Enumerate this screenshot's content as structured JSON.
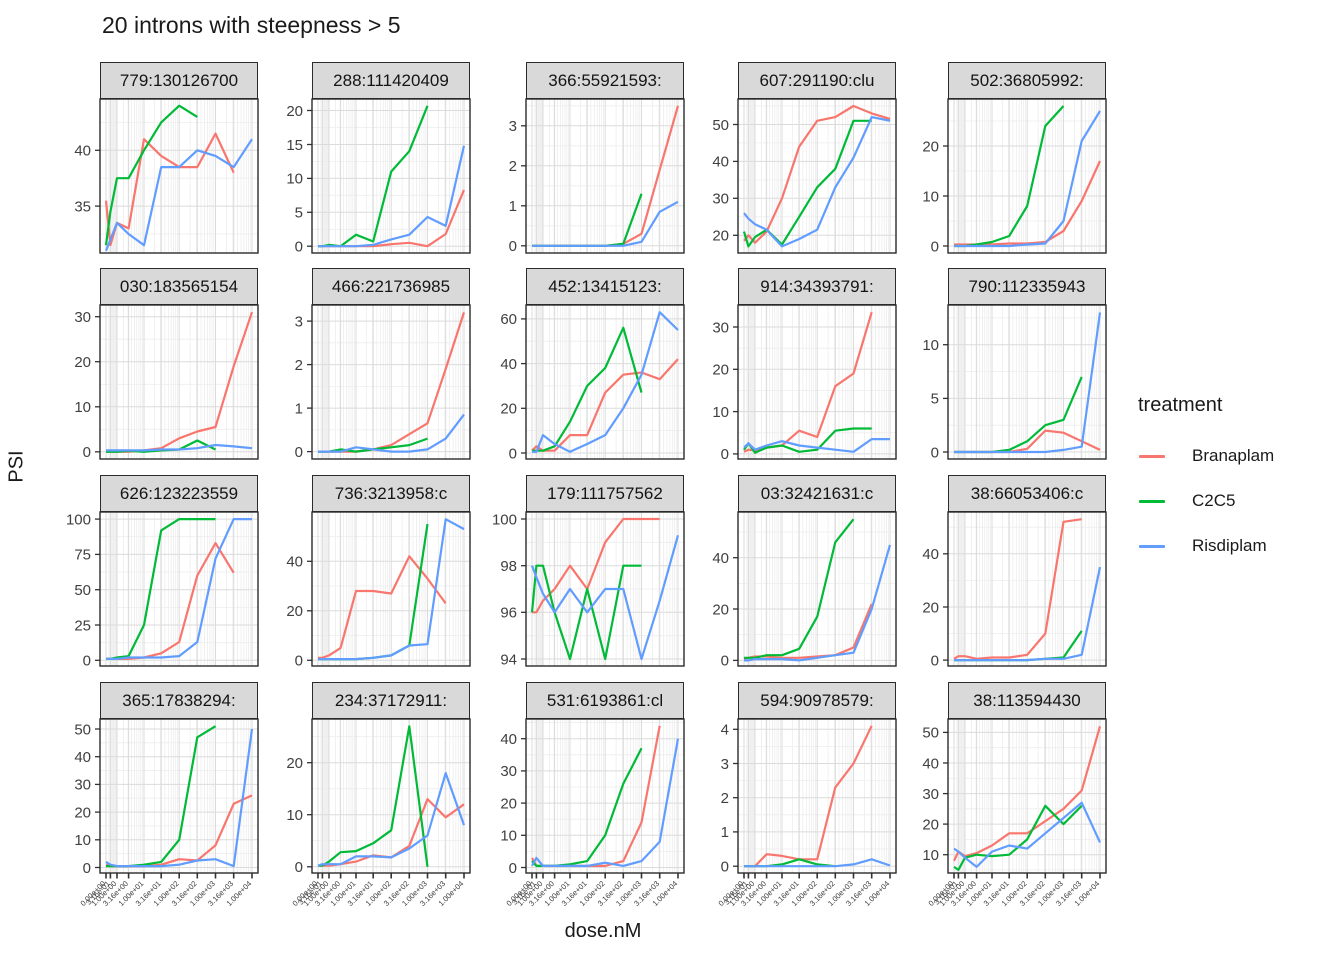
{
  "chart_data": {
    "type": "line",
    "title": "20 introns with steepness > 5",
    "xlabel": "dose.nM",
    "ylabel": "PSI",
    "x_scale": "log10(dose+1)",
    "doses": [
      0,
      0.316,
      1,
      3.16,
      10,
      31.6,
      100,
      316,
      1000,
      3160,
      10000
    ],
    "x_tick_labels": [
      "0.00e+00",
      "3.16e-01",
      "1.00e+00",
      "3.16e+00",
      "1.00e+01",
      "3.16e+01",
      "1.00e+02",
      "3.16e+02",
      "1.00e+03",
      "3.16e+03",
      "1.00e+04"
    ],
    "legend": {
      "title": "treatment",
      "position": "right",
      "entries": [
        {
          "name": "Branaplam",
          "color": "#F8766D"
        },
        {
          "name": "C2C5",
          "color": "#00BA38"
        },
        {
          "name": "Risdiplam",
          "color": "#619CFF"
        }
      ]
    },
    "style": {
      "strip_fill": "#D9D9D9",
      "panel_border": "#2b2b2b",
      "grid_major": "#DBDBDB",
      "grid_minor": "#EDEDED",
      "axis_text": "#404040"
    },
    "facets": [
      {
        "title": "779:130126700",
        "y_ticks": [
          35,
          40
        ],
        "y_range": [
          30.8,
          44.6
        ],
        "series": {
          "Branaplam": [
            35.5,
            31.5,
            33.5,
            33,
            41,
            39.5,
            38.5,
            38.5,
            41.5,
            38,
            null
          ],
          "C2C5": [
            31.5,
            34.5,
            37.5,
            37.5,
            40,
            42.5,
            44,
            43,
            null,
            null,
            null
          ],
          "Risdiplam": [
            31,
            32,
            33.5,
            32.5,
            31.5,
            38.5,
            38.5,
            40,
            39.5,
            38.5,
            41
          ]
        }
      },
      {
        "title": "288:111420409",
        "y_ticks": [
          0,
          5,
          10,
          15,
          20
        ],
        "y_range": [
          -1,
          21.7
        ],
        "series": {
          "Branaplam": [
            0,
            0,
            0,
            0,
            0,
            0,
            0.3,
            0.5,
            0,
            1.8,
            8.3
          ],
          "C2C5": [
            0,
            0,
            0.2,
            0,
            1.7,
            0.7,
            11,
            14,
            20.7,
            null,
            null
          ],
          "Risdiplam": [
            0,
            0,
            0,
            0,
            0,
            0.2,
            1,
            1.7,
            4.3,
            3,
            14.8
          ]
        }
      },
      {
        "title": "366:55921593:",
        "y_ticks": [
          0,
          1,
          2,
          3
        ],
        "y_range": [
          -0.18,
          3.67
        ],
        "series": {
          "Branaplam": [
            0,
            0,
            0,
            0,
            0,
            0,
            0,
            0.05,
            0.3,
            1.9,
            3.5
          ],
          "C2C5": [
            0,
            0,
            0,
            0,
            0,
            0,
            0,
            0.05,
            1.3,
            null,
            null
          ],
          "Risdiplam": [
            0,
            0,
            0,
            0,
            0,
            0,
            0,
            0,
            0.1,
            0.85,
            1.1
          ]
        }
      },
      {
        "title": "607:291190:clu",
        "y_ticks": [
          20,
          30,
          40,
          50
        ],
        "y_range": [
          15.2,
          56.9
        ],
        "series": {
          "Branaplam": [
            18.5,
            20,
            18,
            21,
            30,
            44,
            51,
            52,
            55,
            53,
            51.5
          ],
          "C2C5": [
            21,
            17,
            19.5,
            21.5,
            17.5,
            25,
            33,
            38,
            51,
            51,
            null
          ],
          "Risdiplam": [
            26,
            24.5,
            23,
            21.5,
            17,
            19,
            21.5,
            33,
            41,
            52,
            51
          ]
        }
      },
      {
        "title": "502:36805992:",
        "y_ticks": [
          0,
          10,
          20
        ],
        "y_range": [
          -1.4,
          29.4
        ],
        "series": {
          "Branaplam": [
            0.3,
            0.3,
            0.3,
            0.3,
            0.3,
            0.5,
            0.5,
            0.8,
            3,
            9,
            17
          ],
          "C2C5": [
            0,
            0,
            0,
            0.3,
            0.8,
            2,
            8,
            24,
            28,
            null,
            null
          ],
          "Risdiplam": [
            0,
            0,
            0,
            0,
            0,
            0,
            0.3,
            0.5,
            5,
            21,
            27
          ]
        }
      },
      {
        "title": "030:183565154",
        "y_ticks": [
          0,
          10,
          20,
          30
        ],
        "y_range": [
          -1.6,
          32.6
        ],
        "series": {
          "Branaplam": [
            0,
            0,
            0,
            0,
            0.3,
            0.8,
            3,
            4.5,
            5.5,
            19,
            31
          ],
          "C2C5": [
            0,
            0,
            0,
            0.2,
            0,
            0.3,
            0.5,
            2.5,
            0.5,
            null,
            null
          ],
          "Risdiplam": [
            0.3,
            0.3,
            0.3,
            0.3,
            0.3,
            0.5,
            0.5,
            0.8,
            1.5,
            1.2,
            0.8
          ]
        }
      },
      {
        "title": "466:221736985",
        "y_ticks": [
          0,
          1,
          2,
          3
        ],
        "y_range": [
          -0.17,
          3.37
        ],
        "series": {
          "Branaplam": [
            0,
            0,
            0,
            0,
            0,
            0.05,
            0.15,
            0.4,
            0.65,
            1.9,
            3.2
          ],
          "C2C5": [
            0,
            0,
            0,
            0.05,
            0,
            0.05,
            0.1,
            0.15,
            0.3,
            null,
            null
          ],
          "Risdiplam": [
            0,
            0,
            0,
            0,
            0.1,
            0.05,
            0,
            0,
            0.05,
            0.3,
            0.85
          ]
        }
      },
      {
        "title": "452:13415123:",
        "y_ticks": [
          0,
          20,
          40,
          60
        ],
        "y_range": [
          -2.7,
          66.2
        ],
        "series": {
          "Branaplam": [
            1,
            3,
            1,
            1,
            8,
            8,
            27,
            35,
            36,
            33,
            42
          ],
          "C2C5": [
            1,
            1,
            1,
            3,
            14,
            30,
            38,
            56,
            27,
            null,
            null
          ],
          "Risdiplam": [
            0.5,
            0.5,
            8,
            4,
            0.5,
            4,
            8,
            20,
            35,
            63,
            55
          ]
        }
      },
      {
        "title": "914:34393791:",
        "y_ticks": [
          0,
          10,
          20,
          30
        ],
        "y_range": [
          -1.2,
          35.2
        ],
        "series": {
          "Branaplam": [
            0.5,
            1,
            0.8,
            1.5,
            2,
            5.5,
            4,
            16,
            19,
            33.5,
            null
          ],
          "C2C5": [
            1,
            2.5,
            0.3,
            1.5,
            2,
            0.5,
            1,
            5.5,
            6,
            6,
            null
          ],
          "Risdiplam": [
            1.5,
            2.5,
            1,
            2,
            3,
            2,
            1.5,
            1,
            0.5,
            3.5,
            3.5
          ]
        }
      },
      {
        "title": "790:112335943",
        "y_ticks": [
          0,
          5,
          10
        ],
        "y_range": [
          -0.65,
          13.7
        ],
        "series": {
          "Branaplam": [
            0,
            0,
            0,
            0,
            0,
            0,
            0.3,
            2,
            1.8,
            1,
            0.2
          ],
          "C2C5": [
            0,
            0,
            0,
            0,
            0,
            0.2,
            1,
            2.5,
            3,
            7,
            null
          ],
          "Risdiplam": [
            0,
            0,
            0,
            0,
            0,
            0,
            0,
            0,
            0.2,
            0.5,
            13
          ]
        }
      },
      {
        "title": "626:123223559",
        "y_ticks": [
          0,
          25,
          50,
          75,
          100
        ],
        "y_range": [
          -4,
          105
        ],
        "series": {
          "Branaplam": [
            1,
            1,
            1,
            1,
            2,
            5,
            13,
            60,
            83,
            62,
            null
          ],
          "C2C5": [
            1,
            1,
            2,
            3,
            25,
            92,
            100,
            100,
            100,
            null,
            null
          ],
          "Risdiplam": [
            1,
            1,
            1,
            2,
            2,
            2,
            3,
            13,
            72,
            100,
            100
          ]
        }
      },
      {
        "title": "736:3213958:c",
        "y_ticks": [
          0,
          20,
          40
        ],
        "y_range": [
          -2.3,
          59.9
        ],
        "series": {
          "Branaplam": [
            1,
            1,
            2,
            5,
            28,
            28,
            27,
            42,
            33,
            23,
            null
          ],
          "C2C5": [
            0.5,
            0.5,
            0.5,
            0.5,
            0.5,
            1,
            2,
            6,
            55,
            null,
            null
          ],
          "Risdiplam": [
            0.5,
            0.5,
            0.5,
            0.5,
            0.5,
            1,
            2,
            6,
            6.5,
            57,
            53
          ]
        }
      },
      {
        "title": "179:111757562",
        "y_ticks": [
          94,
          96,
          98,
          100
        ],
        "y_range": [
          93.7,
          100.3
        ],
        "series": {
          "Branaplam": [
            96,
            96,
            96.5,
            97,
            98,
            97,
            99,
            100,
            100,
            100,
            null
          ],
          "C2C5": [
            96,
            98,
            98,
            96,
            94,
            97,
            94,
            98,
            98,
            null,
            null
          ],
          "Risdiplam": [
            98,
            97.5,
            96.8,
            96,
            97,
            96,
            97,
            97,
            94,
            96.5,
            99.3
          ]
        }
      },
      {
        "title": "03:32421631:c",
        "y_ticks": [
          0,
          20,
          40
        ],
        "y_range": [
          -2.2,
          57.8
        ],
        "series": {
          "Branaplam": [
            0.5,
            1,
            1.5,
            1.5,
            1,
            1,
            1.5,
            2,
            5,
            22,
            null
          ],
          "C2C5": [
            1,
            1,
            1,
            2,
            2,
            4.5,
            17,
            46,
            55,
            null,
            null
          ],
          "Risdiplam": [
            0,
            0,
            0.5,
            0.5,
            0.5,
            0,
            1,
            2,
            3,
            20,
            45
          ]
        }
      },
      {
        "title": "38:66053406:c",
        "y_ticks": [
          0,
          20,
          40
        ],
        "y_range": [
          -2.2,
          55.7
        ],
        "series": {
          "Branaplam": [
            0.5,
            1.5,
            1.5,
            0.5,
            1,
            1,
            2,
            10,
            52,
            53,
            null
          ],
          "C2C5": [
            0,
            0,
            0,
            0,
            0,
            0,
            0,
            0.5,
            1,
            11,
            null
          ],
          "Risdiplam": [
            0,
            0,
            0,
            0,
            0,
            0,
            0,
            0.5,
            0.5,
            2,
            35
          ]
        }
      },
      {
        "title": "365:17838294:",
        "y_ticks": [
          0,
          10,
          20,
          30,
          40,
          50
        ],
        "y_range": [
          -2,
          53.6
        ],
        "series": {
          "Branaplam": [
            1,
            0.5,
            0.5,
            0.5,
            0.5,
            1,
            3,
            2.5,
            8,
            23,
            26
          ],
          "C2C5": [
            0.5,
            0.5,
            0.5,
            0.5,
            1,
            2,
            10,
            47,
            51,
            null,
            null
          ],
          "Risdiplam": [
            2,
            1,
            0.5,
            0.5,
            0.5,
            0.5,
            1,
            2.5,
            3,
            0.5,
            50
          ]
        }
      },
      {
        "title": "234:37172911:",
        "y_ticks": [
          0,
          10,
          20
        ],
        "y_range": [
          -1.2,
          28.4
        ],
        "series": {
          "Branaplam": [
            0.2,
            0.2,
            0.2,
            0.5,
            1,
            2.2,
            1.8,
            4,
            13,
            9.5,
            12
          ],
          "C2C5": [
            0.2,
            0.2,
            1,
            2.8,
            3,
            4.5,
            7,
            27,
            0,
            null,
            null
          ],
          "Risdiplam": [
            0.2,
            0.5,
            0.5,
            0.5,
            2,
            2,
            1.8,
            3.5,
            6,
            18,
            8
          ]
        }
      },
      {
        "title": "531:6193861:cl",
        "y_ticks": [
          0,
          10,
          20,
          30,
          40
        ],
        "y_range": [
          -1.7,
          46.1
        ],
        "series": {
          "Branaplam": [
            3,
            0.5,
            0.5,
            0.5,
            0.5,
            0.5,
            0.5,
            2,
            14,
            44,
            null
          ],
          "C2C5": [
            2,
            0.5,
            0.5,
            0.5,
            1,
            2,
            10,
            26,
            37,
            null,
            null
          ],
          "Risdiplam": [
            0.5,
            3,
            0.5,
            0.5,
            0.5,
            0.5,
            1.5,
            0.5,
            2,
            8,
            40
          ]
        }
      },
      {
        "title": "594:90978579:",
        "y_ticks": [
          0,
          1,
          2,
          3,
          4
        ],
        "y_range": [
          -0.2,
          4.3
        ],
        "series": {
          "Branaplam": [
            0,
            0,
            0,
            0.35,
            0.3,
            0.2,
            0.2,
            2.3,
            3,
            4.1,
            null
          ],
          "C2C5": [
            0,
            0,
            0,
            0,
            0.05,
            0.2,
            0.05,
            0,
            null,
            null,
            null
          ],
          "Risdiplam": [
            0,
            0,
            0,
            0,
            0,
            0,
            0,
            0,
            0.05,
            0.2,
            0.02
          ]
        }
      },
      {
        "title": "38:113594430",
        "y_ticks": [
          10,
          20,
          30,
          40,
          50
        ],
        "y_range": [
          4,
          54.4
        ],
        "series": {
          "Branaplam": [
            8,
            11,
            9.5,
            10.5,
            13,
            17,
            17,
            21,
            25,
            31,
            52
          ],
          "C2C5": [
            6,
            5,
            9,
            10,
            9.5,
            10,
            15,
            26,
            20,
            26,
            null
          ],
          "Risdiplam": [
            12,
            11,
            9,
            6,
            11,
            13,
            12,
            17,
            22,
            27,
            14
          ]
        }
      }
    ]
  }
}
